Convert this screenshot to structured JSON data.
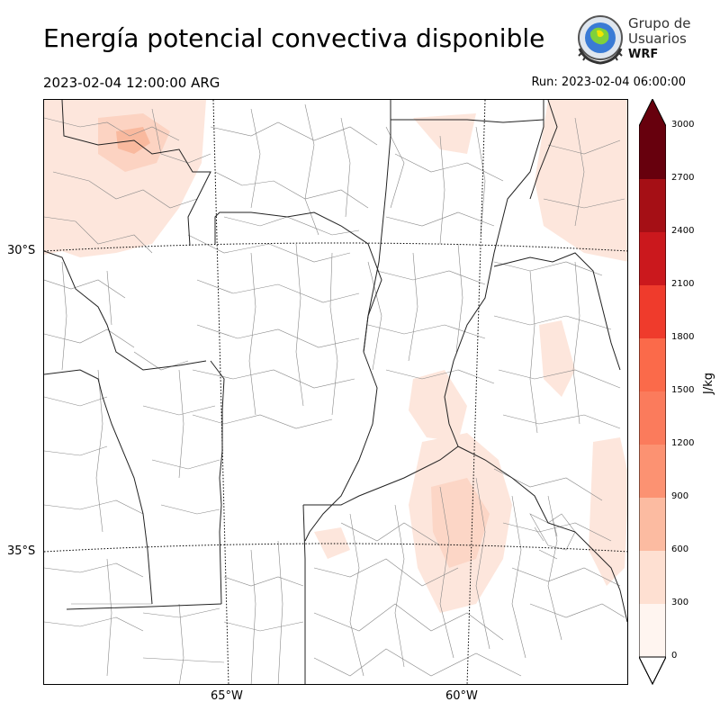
{
  "header": {
    "title": "Energía potencial convectiva disponible",
    "valid_time": "2023-02-04 12:00:00 ARG",
    "run_time": "Run: 2023-02-04 06:00:00"
  },
  "logo": {
    "line1": "Grupo de",
    "line2": "Usuarios",
    "line3": "WRF"
  },
  "map": {
    "variable": "CAPE",
    "lat_labels": [
      "30°S",
      "35°S"
    ],
    "lon_labels": [
      "65°W",
      "60°W"
    ],
    "colors": {
      "weak": "#fde6dc",
      "moderate": "#fcc7b0",
      "strong": "#f9a68a",
      "boundary": "#222222",
      "department": "#888888",
      "grid": "#000000"
    }
  },
  "colorbar": {
    "label": "J/kg",
    "levels": [
      "0",
      "300",
      "600",
      "900",
      "1200",
      "1500",
      "1800",
      "2100",
      "2400",
      "2700",
      "3000"
    ],
    "colors": [
      "#fff5f0",
      "#fee0d2",
      "#fcbba1",
      "#fc9272",
      "#fb7b5c",
      "#fb6a4a",
      "#ef3b2c",
      "#cb181d",
      "#a50f15",
      "#67000d"
    ],
    "extend_color": "#67000d"
  }
}
